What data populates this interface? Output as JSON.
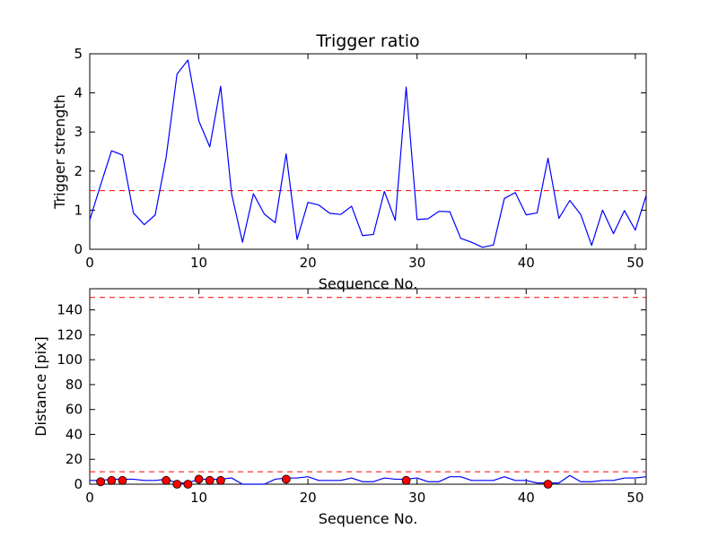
{
  "chart_data": [
    {
      "type": "line",
      "title": "Trigger ratio",
      "xlabel": "Sequence No.",
      "ylabel": "Trigger strength",
      "xlim": [
        0,
        51
      ],
      "ylim": [
        0,
        5
      ],
      "xticks": [
        0,
        10,
        20,
        30,
        40,
        50
      ],
      "yticks": [
        0,
        1,
        2,
        3,
        4,
        5
      ],
      "grid": false,
      "colors": {
        "line": "#0000ff",
        "threshold": "#ff0000"
      },
      "thresholds": [
        1.5
      ],
      "series": [
        {
          "x": [
            0,
            1,
            2,
            3,
            4,
            5,
            6,
            7,
            8,
            9,
            10,
            11,
            12,
            13,
            14,
            15,
            16,
            17,
            18,
            19,
            20,
            21,
            22,
            23,
            24,
            25,
            26,
            27,
            28,
            29,
            30,
            31,
            32,
            33,
            34,
            35,
            36,
            37,
            38,
            39,
            40,
            41,
            42,
            43,
            44,
            45,
            46,
            47,
            48,
            49,
            50,
            51
          ],
          "values": [
            0.75,
            1.65,
            2.52,
            2.41,
            0.93,
            0.63,
            0.88,
            2.35,
            4.48,
            4.84,
            3.28,
            2.62,
            4.17,
            1.42,
            0.18,
            1.42,
            0.9,
            0.68,
            2.44,
            0.25,
            1.2,
            1.13,
            0.92,
            0.89,
            1.1,
            0.35,
            0.38,
            1.48,
            0.74,
            4.15,
            0.76,
            0.78,
            0.97,
            0.96,
            0.28,
            0.18,
            0.05,
            0.11,
            1.3,
            1.45,
            0.88,
            0.93,
            2.33,
            0.79,
            1.25,
            0.89,
            0.1,
            1.0,
            0.4,
            0.99,
            0.49,
            1.38
          ]
        }
      ]
    },
    {
      "type": "line",
      "title": "",
      "xlabel": "Sequence No.",
      "ylabel": "Distance [pix]",
      "xlim": [
        0,
        51
      ],
      "ylim": [
        0,
        157
      ],
      "xticks": [
        0,
        10,
        20,
        30,
        40,
        50
      ],
      "yticks": [
        0,
        20,
        40,
        60,
        80,
        100,
        120,
        140
      ],
      "grid": false,
      "colors": {
        "line": "#0000ff",
        "threshold": "#ff0000",
        "marker": "#ff0000"
      },
      "thresholds": [
        10,
        150
      ],
      "series": [
        {
          "x": [
            0,
            1,
            2,
            3,
            4,
            5,
            6,
            7,
            8,
            9,
            10,
            11,
            12,
            13,
            14,
            15,
            16,
            17,
            18,
            19,
            20,
            21,
            22,
            23,
            24,
            25,
            26,
            27,
            28,
            29,
            30,
            31,
            32,
            33,
            34,
            35,
            36,
            37,
            38,
            39,
            40,
            41,
            42,
            43,
            44,
            45,
            46,
            47,
            48,
            49,
            50,
            51
          ],
          "values": [
            3,
            3,
            4,
            4,
            4,
            3,
            3,
            4,
            1,
            1,
            4,
            4,
            4,
            5,
            0,
            0,
            0,
            4,
            5,
            5,
            6,
            3,
            3,
            3,
            5,
            2,
            2,
            5,
            4,
            4,
            5,
            2,
            2,
            6,
            6,
            3,
            3,
            3,
            6,
            3,
            3,
            1,
            1,
            1,
            7,
            2,
            2,
            3,
            3,
            5,
            5,
            6
          ]
        },
        {
          "type": "scatter",
          "x": [
            1,
            2,
            3,
            7,
            8,
            9,
            10,
            11,
            12,
            18,
            29,
            42
          ],
          "values": [
            2,
            3,
            3,
            3,
            0,
            0,
            4,
            3,
            3,
            4,
            3,
            0
          ]
        }
      ]
    }
  ]
}
